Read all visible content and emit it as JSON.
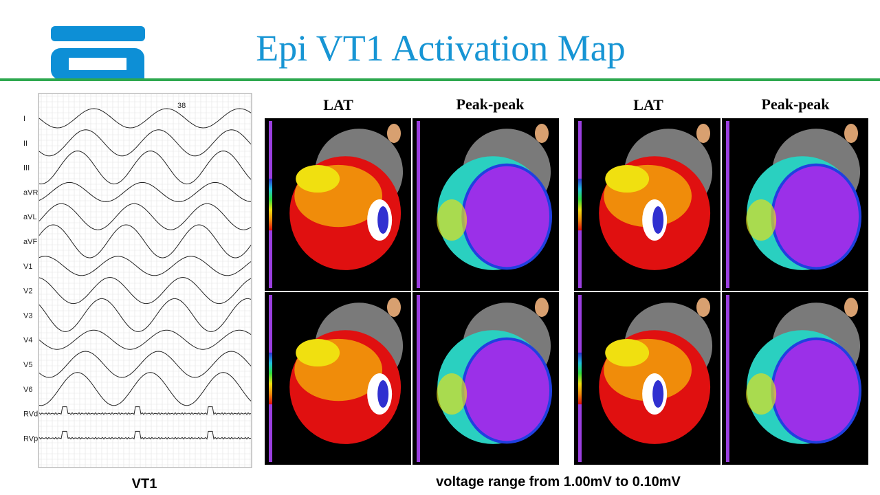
{
  "title": "Epi VT1 Activation Map",
  "ecg": {
    "number": "38",
    "leads": [
      "I",
      "II",
      "III",
      "aVR",
      "aVL",
      "aVF",
      "V1",
      "V2",
      "V3",
      "V4",
      "V5",
      "V6",
      "RVd",
      "RVp"
    ],
    "caption": "VT1"
  },
  "panels": [
    {
      "headers": [
        "LAT",
        "Peak-peak"
      ]
    },
    {
      "headers": [
        "LAT",
        "Peak-peak"
      ]
    }
  ],
  "caption": "voltage range from 1.00mV to 0.10mV"
}
